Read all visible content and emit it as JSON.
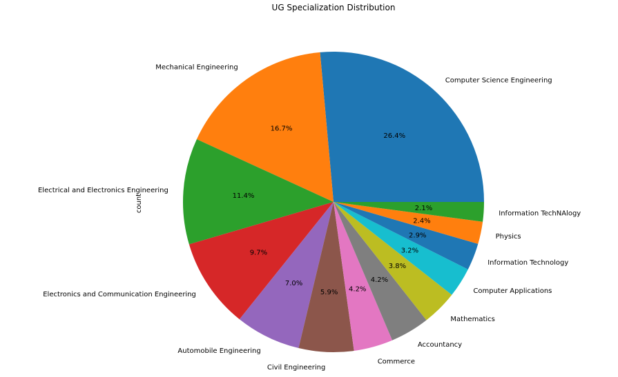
{
  "chart_data": {
    "type": "pie",
    "title": "UG Specialization Distribution",
    "ylabel": "count",
    "start_angle_deg": 0,
    "direction": "counterclockwise",
    "slices": [
      {
        "label": "Computer Science Engineering",
        "value": 26.4,
        "pct_label": "26.4%",
        "color": "#1f77b4"
      },
      {
        "label": "Mechanical Engineering",
        "value": 16.7,
        "pct_label": "16.7%",
        "color": "#ff7f0e"
      },
      {
        "label": "Electrical and Electronics Engineering",
        "value": 11.4,
        "pct_label": "11.4%",
        "color": "#2ca02c"
      },
      {
        "label": "Electronics and Communication Engineering",
        "value": 9.7,
        "pct_label": "9.7%",
        "color": "#d62728"
      },
      {
        "label": "Automobile Engineering",
        "value": 7.0,
        "pct_label": "7.0%",
        "color": "#9467bd"
      },
      {
        "label": "Civil Engineering",
        "value": 5.9,
        "pct_label": "5.9%",
        "color": "#8c564b"
      },
      {
        "label": "Commerce",
        "value": 4.2,
        "pct_label": "4.2%",
        "color": "#e377c2"
      },
      {
        "label": "Accountancy",
        "value": 4.2,
        "pct_label": "4.2%",
        "color": "#7f7f7f"
      },
      {
        "label": "Mathematics",
        "value": 3.8,
        "pct_label": "3.8%",
        "color": "#bcbd22"
      },
      {
        "label": "Computer Applications",
        "value": 3.2,
        "pct_label": "3.2%",
        "color": "#17becf"
      },
      {
        "label": "Information Technology",
        "value": 2.9,
        "pct_label": "2.9%",
        "color": "#1f77b4"
      },
      {
        "label": "Physics",
        "value": 2.4,
        "pct_label": "2.4%",
        "color": "#ff7f0e"
      },
      {
        "label": "Information TechNAlogy",
        "value": 2.1,
        "pct_label": "2.1%",
        "color": "#2ca02c"
      }
    ]
  }
}
